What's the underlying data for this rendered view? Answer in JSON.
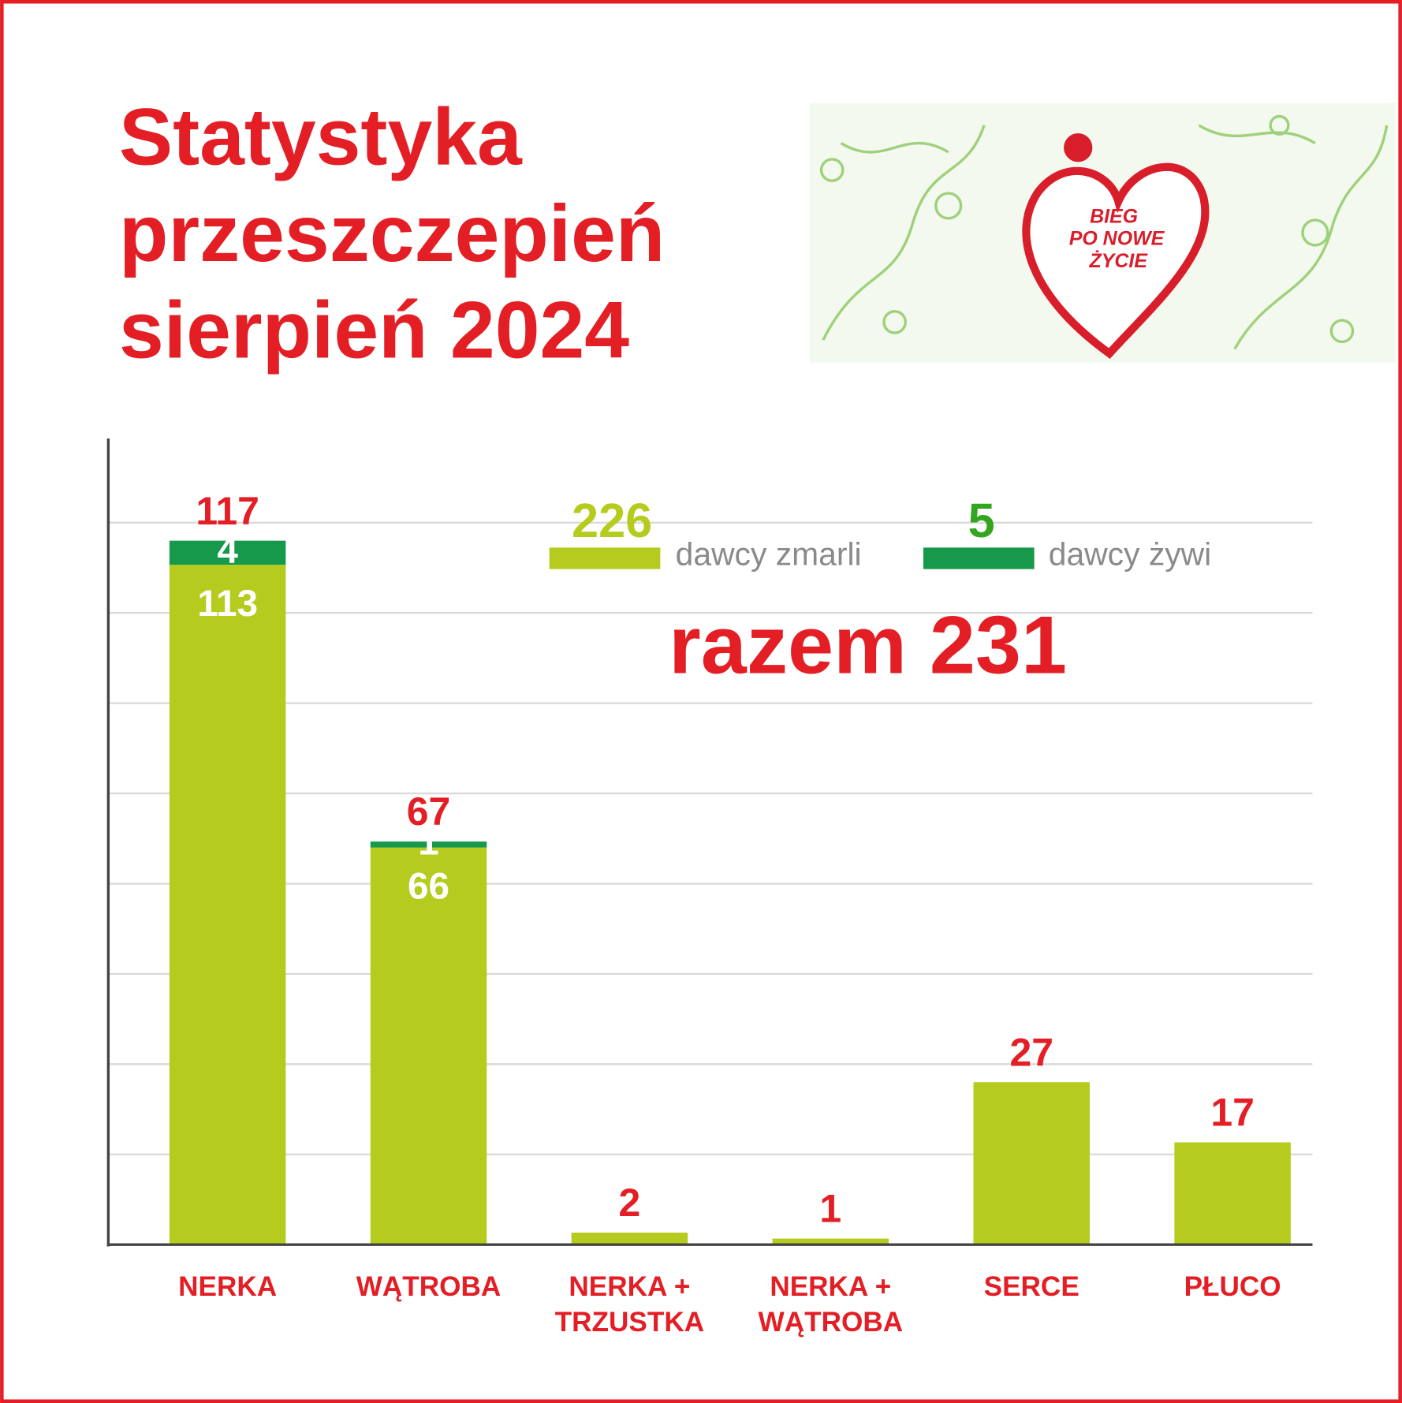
{
  "chart_data": {
    "type": "stacked-bar",
    "title": [
      "Statystyka",
      "przeszczepień",
      "sierpień 2024"
    ],
    "categories": [
      "NERKA",
      "WĄTROBA",
      "NERKA + TRZUSTKA",
      "NERKA + WĄTROBA",
      "SERCE",
      "PŁUCO"
    ],
    "series": [
      {
        "name": "dawcy zmarli",
        "total": 226,
        "color": "#b5cc1f",
        "values": [
          113,
          66,
          2,
          1,
          27,
          17
        ]
      },
      {
        "name": "dawcy żywi",
        "total": 5,
        "color": "#16994a",
        "values": [
          4,
          1,
          null,
          null,
          null,
          null
        ]
      }
    ],
    "totals": [
      117,
      67,
      2,
      1,
      27,
      17
    ],
    "annotation": "razem 231",
    "ylim": [
      0,
      134
    ],
    "yticks": [
      15,
      30,
      45,
      60,
      75,
      90,
      105,
      120
    ],
    "grid": true
  },
  "logo": {
    "text": [
      "BIEG",
      "PO NOWE",
      "ŻYCIE"
    ]
  }
}
